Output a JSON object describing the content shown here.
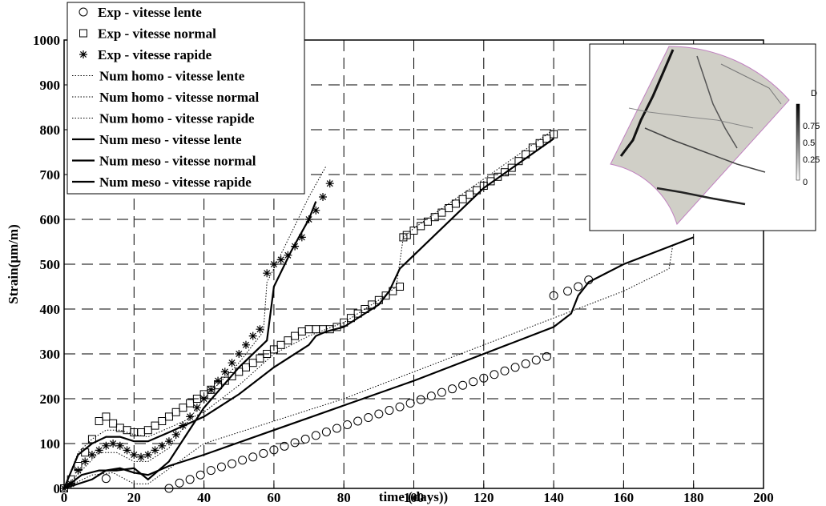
{
  "chart_data": {
    "type": "line",
    "title": "",
    "xlabel": "time (days))",
    "ylabel": "Strain(µm/m)",
    "xlim": [
      0,
      200
    ],
    "ylim": [
      0,
      1000
    ],
    "xticks": [
      0,
      20,
      40,
      60,
      80,
      100,
      120,
      140,
      160,
      180,
      200
    ],
    "yticks": [
      0,
      100,
      200,
      300,
      400,
      500,
      600,
      700,
      800,
      900,
      1000
    ],
    "grid": true,
    "legend_position": "top-left",
    "series": [
      {
        "name": "Exp - vitesse lente",
        "style": "marker",
        "marker": "circle",
        "x": [
          12,
          30,
          33,
          36,
          39,
          42,
          45,
          48,
          51,
          54,
          57,
          60,
          63,
          66,
          69,
          72,
          75,
          78,
          81,
          84,
          87,
          90,
          93,
          96,
          99,
          102,
          105,
          108,
          111,
          114,
          117,
          120,
          123,
          126,
          129,
          132,
          135,
          138,
          140,
          144,
          147,
          150
        ],
        "y": [
          22,
          0,
          12,
          20,
          30,
          40,
          48,
          55,
          63,
          70,
          78,
          86,
          94,
          102,
          110,
          118,
          126,
          134,
          142,
          150,
          158,
          166,
          174,
          182,
          190,
          198,
          206,
          214,
          222,
          230,
          238,
          246,
          254,
          262,
          270,
          278,
          286,
          294,
          430,
          440,
          450,
          465
        ]
      },
      {
        "name": "Exp - vitesse normal",
        "style": "marker",
        "marker": "square",
        "x": [
          0,
          2,
          4,
          6,
          8,
          10,
          12,
          14,
          16,
          18,
          20,
          22,
          24,
          26,
          28,
          30,
          32,
          34,
          36,
          38,
          40,
          42,
          44,
          46,
          48,
          50,
          52,
          54,
          56,
          58,
          60,
          62,
          64,
          66,
          68,
          70,
          72,
          74,
          76,
          78,
          80,
          82,
          84,
          86,
          88,
          90,
          92,
          94,
          96,
          97,
          98,
          100,
          102,
          104,
          106,
          108,
          110,
          112,
          114,
          116,
          118,
          120,
          122,
          124,
          126,
          128,
          130,
          132,
          134,
          136,
          138,
          140
        ],
        "y": [
          0,
          20,
          50,
          80,
          110,
          150,
          160,
          145,
          135,
          130,
          125,
          125,
          130,
          140,
          150,
          160,
          170,
          180,
          190,
          200,
          210,
          220,
          230,
          240,
          250,
          260,
          270,
          280,
          290,
          300,
          310,
          320,
          330,
          340,
          350,
          355,
          355,
          355,
          355,
          360,
          370,
          380,
          390,
          400,
          410,
          420,
          430,
          440,
          450,
          560,
          565,
          575,
          585,
          595,
          605,
          615,
          625,
          635,
          645,
          655,
          665,
          675,
          685,
          695,
          705,
          715,
          730,
          745,
          760,
          770,
          780,
          790
        ]
      },
      {
        "name": "Exp - vitesse rapide",
        "style": "marker",
        "marker": "star",
        "x": [
          0,
          2,
          4,
          6,
          8,
          10,
          12,
          14,
          16,
          18,
          20,
          22,
          24,
          26,
          28,
          30,
          32,
          34,
          36,
          38,
          40,
          42,
          44,
          46,
          48,
          50,
          52,
          54,
          56,
          58,
          60,
          62,
          64,
          66,
          68,
          70,
          72,
          74,
          76
        ],
        "y": [
          0,
          10,
          40,
          60,
          75,
          85,
          95,
          100,
          95,
          85,
          75,
          70,
          75,
          85,
          95,
          105,
          120,
          140,
          160,
          180,
          200,
          220,
          240,
          260,
          280,
          300,
          320,
          340,
          355,
          480,
          500,
          510,
          520,
          540,
          560,
          600,
          620,
          650,
          680
        ]
      },
      {
        "name": "Num homo - vitesse lente",
        "style": "dotted",
        "x": [
          0,
          8,
          14,
          20,
          24,
          40,
          60,
          80,
          100,
          120,
          140,
          160,
          173,
          174
        ],
        "y": [
          0,
          30,
          35,
          10,
          10,
          100,
          150,
          200,
          260,
          320,
          380,
          440,
          490,
          540
        ]
      },
      {
        "name": "Num homo - vitesse normal",
        "style": "dotted",
        "x": [
          0,
          4,
          8,
          12,
          16,
          20,
          24,
          30,
          40,
          50,
          60,
          70,
          80,
          90,
          95,
          97,
          100,
          120,
          140
        ],
        "y": [
          0,
          80,
          110,
          130,
          130,
          120,
          115,
          135,
          170,
          230,
          300,
          340,
          370,
          420,
          450,
          560,
          580,
          690,
          800
        ]
      },
      {
        "name": "Num homo - vitesse rapide",
        "style": "dotted",
        "x": [
          0,
          5,
          10,
          15,
          20,
          24,
          30,
          40,
          50,
          57,
          58,
          60,
          65,
          70,
          75
        ],
        "y": [
          0,
          40,
          80,
          80,
          60,
          60,
          90,
          200,
          280,
          350,
          460,
          490,
          570,
          650,
          720
        ]
      },
      {
        "name": "Num meso - vitesse lente",
        "style": "solid",
        "x": [
          0,
          8,
          12,
          16,
          20,
          24,
          30,
          40,
          60,
          80,
          100,
          120,
          140,
          145,
          147,
          150,
          160,
          180
        ],
        "y": [
          0,
          20,
          40,
          45,
          35,
          30,
          50,
          75,
          130,
          185,
          240,
          300,
          360,
          390,
          430,
          460,
          500,
          560
        ]
      },
      {
        "name": "Num meso - vitesse normal",
        "style": "solid",
        "x": [
          0,
          4,
          8,
          12,
          16,
          20,
          24,
          30,
          40,
          50,
          60,
          70,
          72,
          75,
          80,
          90,
          93,
          96,
          100,
          120,
          140
        ],
        "y": [
          0,
          75,
          100,
          115,
          115,
          105,
          105,
          125,
          160,
          210,
          270,
          320,
          340,
          350,
          360,
          410,
          440,
          490,
          520,
          670,
          780
        ]
      },
      {
        "name": "Num meso - vitesse rapide",
        "style": "solid",
        "x": [
          0,
          5,
          10,
          15,
          20,
          24,
          30,
          40,
          50,
          58,
          60,
          65,
          70,
          72
        ],
        "y": [
          0,
          30,
          40,
          40,
          45,
          20,
          60,
          180,
          270,
          330,
          450,
          530,
          600,
          640
        ]
      }
    ],
    "inset": {
      "colorbar_label": "D",
      "colorbar_ticks": [
        "0.75",
        "0.5",
        "0.25",
        "0"
      ]
    }
  }
}
